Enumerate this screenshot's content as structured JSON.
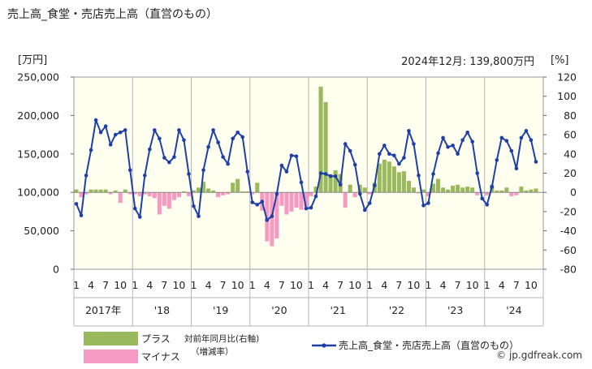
{
  "chart_data": {
    "type": "bar+line",
    "title": "売上高_食堂・売店売上高（直営のもの）",
    "left_unit": "[万円]",
    "right_unit": "[%]",
    "latest_note": "2024年12月: 139,800万円",
    "left_axis": {
      "min": 0,
      "max": 250000,
      "ticks": [
        0,
        50000,
        100000,
        150000,
        200000,
        250000
      ],
      "tick_labels": [
        "0",
        "50,000",
        "100,000",
        "150,000",
        "200,000",
        "250,000"
      ]
    },
    "right_axis": {
      "min": -80,
      "max": 120,
      "ticks": [
        -80,
        -60,
        -40,
        -20,
        0,
        20,
        40,
        60,
        80,
        100,
        120
      ],
      "tick_labels": [
        "-80",
        "-60",
        "-40",
        "-20",
        "0",
        "20",
        "40",
        "60",
        "80",
        "100",
        "120"
      ]
    },
    "month_tick_labels": [
      "1",
      "4",
      "7",
      "10"
    ],
    "year_labels": [
      "2017年",
      "'18",
      "'19",
      "'20",
      "'21",
      "'22",
      "'23",
      "'24"
    ],
    "series": [
      {
        "name": "売上高_食堂・売店売上高（直営のもの）",
        "axis": "left",
        "kind": "line",
        "color": "#1f3fa8",
        "values": [
          85000,
          70000,
          122000,
          155000,
          194000,
          178000,
          186000,
          162000,
          175000,
          178000,
          181000,
          129000,
          79000,
          68000,
          122000,
          156000,
          181000,
          170000,
          145000,
          139000,
          146000,
          181000,
          168000,
          124000,
          82000,
          69000,
          129000,
          159000,
          181000,
          165000,
          146000,
          137000,
          170000,
          178000,
          172000,
          127000,
          87000,
          84000,
          88000,
          64000,
          69000,
          98000,
          135000,
          127000,
          148000,
          147000,
          113000,
          79000,
          80000,
          95000,
          125000,
          124000,
          121000,
          121000,
          110000,
          163000,
          154000,
          136000,
          98000,
          77000,
          86000,
          109000,
          150000,
          161000,
          150000,
          148000,
          137000,
          145000,
          180000,
          163000,
          122000,
          83000,
          86000,
          124000,
          151000,
          171000,
          159000,
          161000,
          150000,
          168000,
          178000,
          166000,
          125000,
          92000,
          84000,
          107000,
          142000,
          171000,
          167000,
          154000,
          131000,
          171000,
          180000,
          168000,
          139800
        ]
      },
      {
        "name": "対前年同月比（右軸）（増減率）",
        "axis": "right",
        "kind": "bar",
        "positive_label": "プラス",
        "negative_label": "マイナス",
        "positive_color": "#99b95c",
        "negative_color": "#f59ac3",
        "values": [
          3,
          -5,
          -2,
          3,
          3,
          3,
          3,
          -2,
          2,
          -11,
          3,
          -2,
          -2,
          -4,
          -2,
          -4,
          -6,
          -23,
          -14,
          -17,
          -8,
          -5,
          1,
          -4,
          2,
          5,
          11,
          4,
          2,
          -5,
          -3,
          -2,
          10,
          14,
          1,
          1,
          -2,
          10,
          -19,
          -51,
          -56,
          -48,
          -14,
          -23,
          -20,
          -16,
          -18,
          -15,
          -4,
          6,
          110,
          94,
          19,
          23,
          19,
          -16,
          8,
          -5,
          8,
          5,
          -2,
          10,
          30,
          34,
          32,
          27,
          21,
          22,
          12,
          5,
          -1,
          3,
          -4,
          9,
          14,
          5,
          3,
          7,
          8,
          5,
          6,
          5,
          -3,
          -1,
          -3,
          8,
          2,
          2,
          5,
          -4,
          -3,
          6,
          2,
          3,
          4
        ]
      }
    ],
    "legend": {
      "plus": "プラス",
      "minus": "マイナス",
      "bar_desc_1": "対前年同月比(右軸)",
      "bar_desc_2": "（増減率）",
      "line_label": "売上高_食堂・売店売上高（直営のもの）"
    },
    "watermark": "© jp.gdfreak.com",
    "grid": false
  }
}
